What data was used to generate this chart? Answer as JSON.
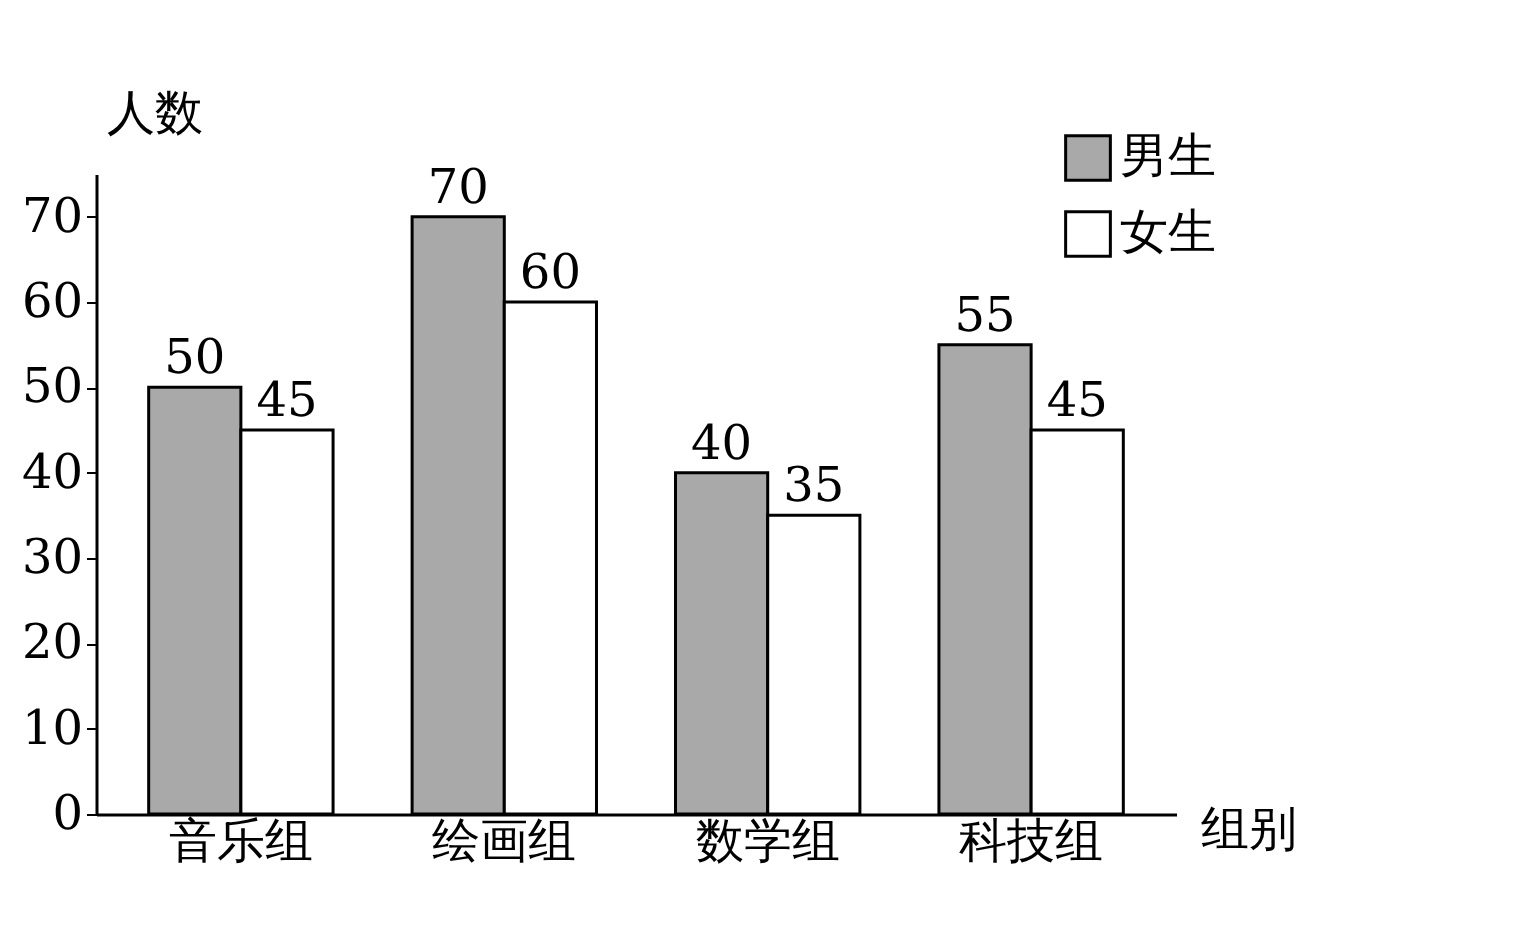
{
  "chart_data": {
    "type": "bar",
    "xlabel": "组别",
    "ylabel": "人数",
    "categories": [
      "音乐组",
      "绘画组",
      "数学组",
      "科技组"
    ],
    "series": [
      {
        "name": "男生",
        "color": "#a9a9a9",
        "values": [
          50,
          70,
          40,
          55
        ]
      },
      {
        "name": "女生",
        "color": "#ffffff",
        "values": [
          45,
          60,
          35,
          45
        ]
      }
    ],
    "ylim": [
      0,
      75
    ],
    "yticks": [
      0,
      10,
      20,
      30,
      40,
      50,
      60,
      70
    ],
    "data_labels": true,
    "grid": false,
    "legend": "top right"
  }
}
